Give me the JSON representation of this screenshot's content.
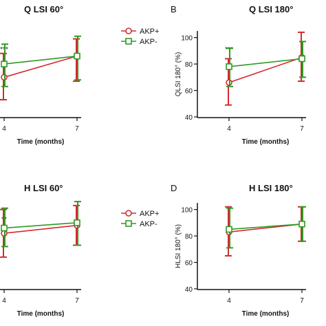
{
  "colors": {
    "akp_plus": "#d42a2f",
    "akp_minus": "#2e9a22",
    "axis": "#111111"
  },
  "legend_labels": [
    "AKP+",
    "AKP-"
  ],
  "chart_data": [
    {
      "panel": "A",
      "type": "line",
      "title": "Q LSI 60°",
      "panel_label": "",
      "xlabel": "Time (months)",
      "ylabel": "",
      "x": [
        "4",
        "7"
      ],
      "significance": "***",
      "legend": "top-right",
      "ylim": [
        40,
        105
      ],
      "series": [
        {
          "name": "AKP+",
          "values": [
            70,
            86
          ],
          "err_low": [
            53,
            67
          ],
          "err_high": [
            88,
            99
          ]
        },
        {
          "name": "AKP-",
          "values": [
            80,
            86
          ],
          "err_low": [
            63,
            68
          ],
          "err_high": [
            95,
            101
          ]
        }
      ]
    },
    {
      "panel": "B",
      "type": "line",
      "title": "Q LSI 180°",
      "panel_label": "B",
      "xlabel": "Time (months)",
      "ylabel": "QLSI 180° (%)",
      "x": [
        "4",
        "7"
      ],
      "yticks": [
        40,
        60,
        80,
        100
      ],
      "significance": "***",
      "ylim": [
        40,
        105
      ],
      "series": [
        {
          "name": "AKP+",
          "values": [
            66,
            85
          ],
          "err_low": [
            49,
            67
          ],
          "err_high": [
            84,
            104
          ]
        },
        {
          "name": "AKP-",
          "values": [
            78,
            84
          ],
          "err_low": [
            63,
            70
          ],
          "err_high": [
            92,
            97
          ]
        }
      ]
    },
    {
      "panel": "C",
      "type": "line",
      "title": "H LSI 60°",
      "panel_label": "",
      "xlabel": "Time (months)",
      "ylabel": "",
      "x": [
        "4",
        "7"
      ],
      "significance": "**",
      "legend": "top-right",
      "ylim": [
        40,
        105
      ],
      "series": [
        {
          "name": "AKP+",
          "values": [
            82,
            88
          ],
          "err_low": [
            64,
            73
          ],
          "err_high": [
            100,
            103
          ]
        },
        {
          "name": "AKP-",
          "values": [
            86,
            90
          ],
          "err_low": [
            72,
            73
          ],
          "err_high": [
            101,
            106
          ]
        }
      ]
    },
    {
      "panel": "D",
      "type": "line",
      "title": "H LSI 180°",
      "panel_label": "D",
      "xlabel": "Time (months)",
      "ylabel": "HLSI 180° (%)",
      "x": [
        "4",
        "7"
      ],
      "yticks": [
        40,
        60,
        80,
        100
      ],
      "ylim": [
        40,
        105
      ],
      "series": [
        {
          "name": "AKP+",
          "values": [
            83,
            89
          ],
          "err_low": [
            65,
            76
          ],
          "err_high": [
            102,
            102
          ]
        },
        {
          "name": "AKP-",
          "values": [
            85,
            89
          ],
          "err_low": [
            71,
            76
          ],
          "err_high": [
            101,
            102
          ]
        }
      ]
    }
  ]
}
